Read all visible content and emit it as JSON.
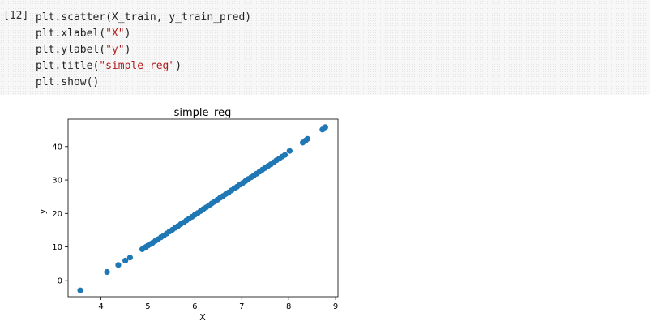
{
  "cell": {
    "prompt": "[12]",
    "lines": [
      [
        {
          "t": "plt.scatter(X_train, y_train_pred)",
          "s": false
        }
      ],
      [
        {
          "t": "plt.xlabel(",
          "s": false
        },
        {
          "t": "\"X\"",
          "s": true
        },
        {
          "t": ")",
          "s": false
        }
      ],
      [
        {
          "t": "plt.ylabel(",
          "s": false
        },
        {
          "t": "\"y\"",
          "s": true
        },
        {
          "t": ")",
          "s": false
        }
      ],
      [
        {
          "t": "plt.title(",
          "s": false
        },
        {
          "t": "\"simple_reg\"",
          "s": true
        },
        {
          "t": ")",
          "s": false
        }
      ],
      [
        {
          "t": "plt.show()",
          "s": false
        }
      ]
    ]
  },
  "chart_data": {
    "type": "scatter",
    "title": "simple_reg",
    "xlabel": "X",
    "ylabel": "y",
    "xlim": [
      3.3,
      9.05
    ],
    "ylim": [
      -4.9,
      48.2
    ],
    "xticks": [
      4,
      5,
      6,
      7,
      8,
      9
    ],
    "yticks": [
      0,
      10,
      20,
      30,
      40
    ],
    "grid": false,
    "marker_color": "#1f77b4",
    "series": [
      {
        "x": [
          3.56,
          4.13,
          4.37,
          4.52,
          4.62,
          4.88,
          4.92,
          4.96,
          5.0,
          5.05,
          5.1,
          5.16,
          5.22,
          5.28,
          5.34,
          5.4,
          5.46,
          5.52,
          5.58,
          5.64,
          5.7,
          5.76,
          5.82,
          5.88,
          5.94,
          6.0,
          6.06,
          6.12,
          6.18,
          6.24,
          6.3,
          6.36,
          6.42,
          6.48,
          6.54,
          6.6,
          6.66,
          6.72,
          6.78,
          6.84,
          6.9,
          6.96,
          7.02,
          7.08,
          7.14,
          7.2,
          7.26,
          7.32,
          7.38,
          7.44,
          7.5,
          7.56,
          7.62,
          7.68,
          7.74,
          7.8,
          7.86,
          7.92,
          8.02,
          8.3,
          8.36,
          8.4,
          8.72,
          8.78
        ],
        "y": [
          -3.0,
          2.5,
          4.6,
          5.9,
          6.8,
          9.3,
          9.7,
          10.0,
          10.4,
          10.8,
          11.2,
          11.8,
          12.3,
          12.9,
          13.4,
          14.0,
          14.6,
          15.1,
          15.7,
          16.2,
          16.8,
          17.3,
          17.9,
          18.5,
          19.0,
          19.6,
          20.1,
          20.7,
          21.3,
          21.8,
          22.4,
          23.0,
          23.5,
          24.1,
          24.7,
          25.2,
          25.8,
          26.3,
          26.9,
          27.5,
          28.0,
          28.6,
          29.1,
          29.7,
          30.3,
          30.8,
          31.4,
          31.9,
          32.5,
          33.1,
          33.6,
          34.2,
          34.7,
          35.3,
          35.9,
          36.4,
          37.0,
          37.5,
          38.7,
          41.2,
          41.8,
          42.3,
          45.1,
          45.8
        ]
      }
    ]
  }
}
